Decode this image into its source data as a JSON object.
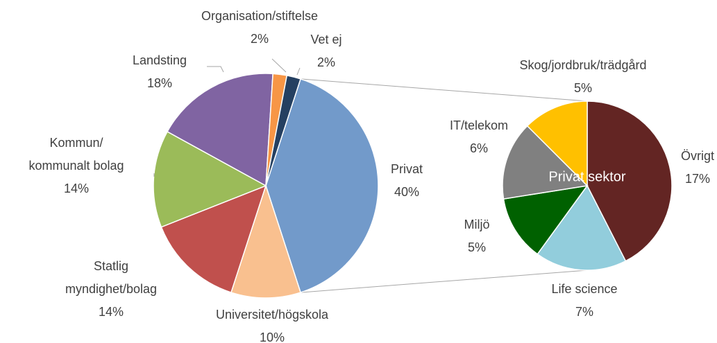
{
  "chart_data": [
    {
      "type": "pie",
      "categories": [
        "Privat",
        "Universitet/högskola",
        "Statlig\nmyndighet/bolag",
        "Kommun/\nkommunalt bolag",
        "Landsting",
        "Organisation/stiftelse",
        "Vet ej"
      ],
      "values": [
        40,
        10,
        14,
        14,
        18,
        2,
        2
      ],
      "value_labels": [
        "40%",
        "10%",
        "14%",
        "14%",
        "18%",
        "2%",
        "2%"
      ],
      "colors": [
        "#729aca",
        "#f9c08f",
        "#c0504d",
        "#9bbb59",
        "#8064a2",
        "#f79646",
        "#254061"
      ]
    },
    {
      "type": "pie",
      "title": "Privat sektor",
      "categories": [
        "Övrigt",
        "Life science",
        "Miljö",
        "IT/telekom",
        "Skog/jordbruk/trädgård"
      ],
      "values": [
        17,
        7,
        5,
        6,
        5
      ],
      "value_labels": [
        "17%",
        "7%",
        "5%",
        "6%",
        "5%"
      ],
      "colors": [
        "#632523",
        "#92cddc",
        "#006100",
        "#808080",
        "#ffc000"
      ]
    }
  ]
}
